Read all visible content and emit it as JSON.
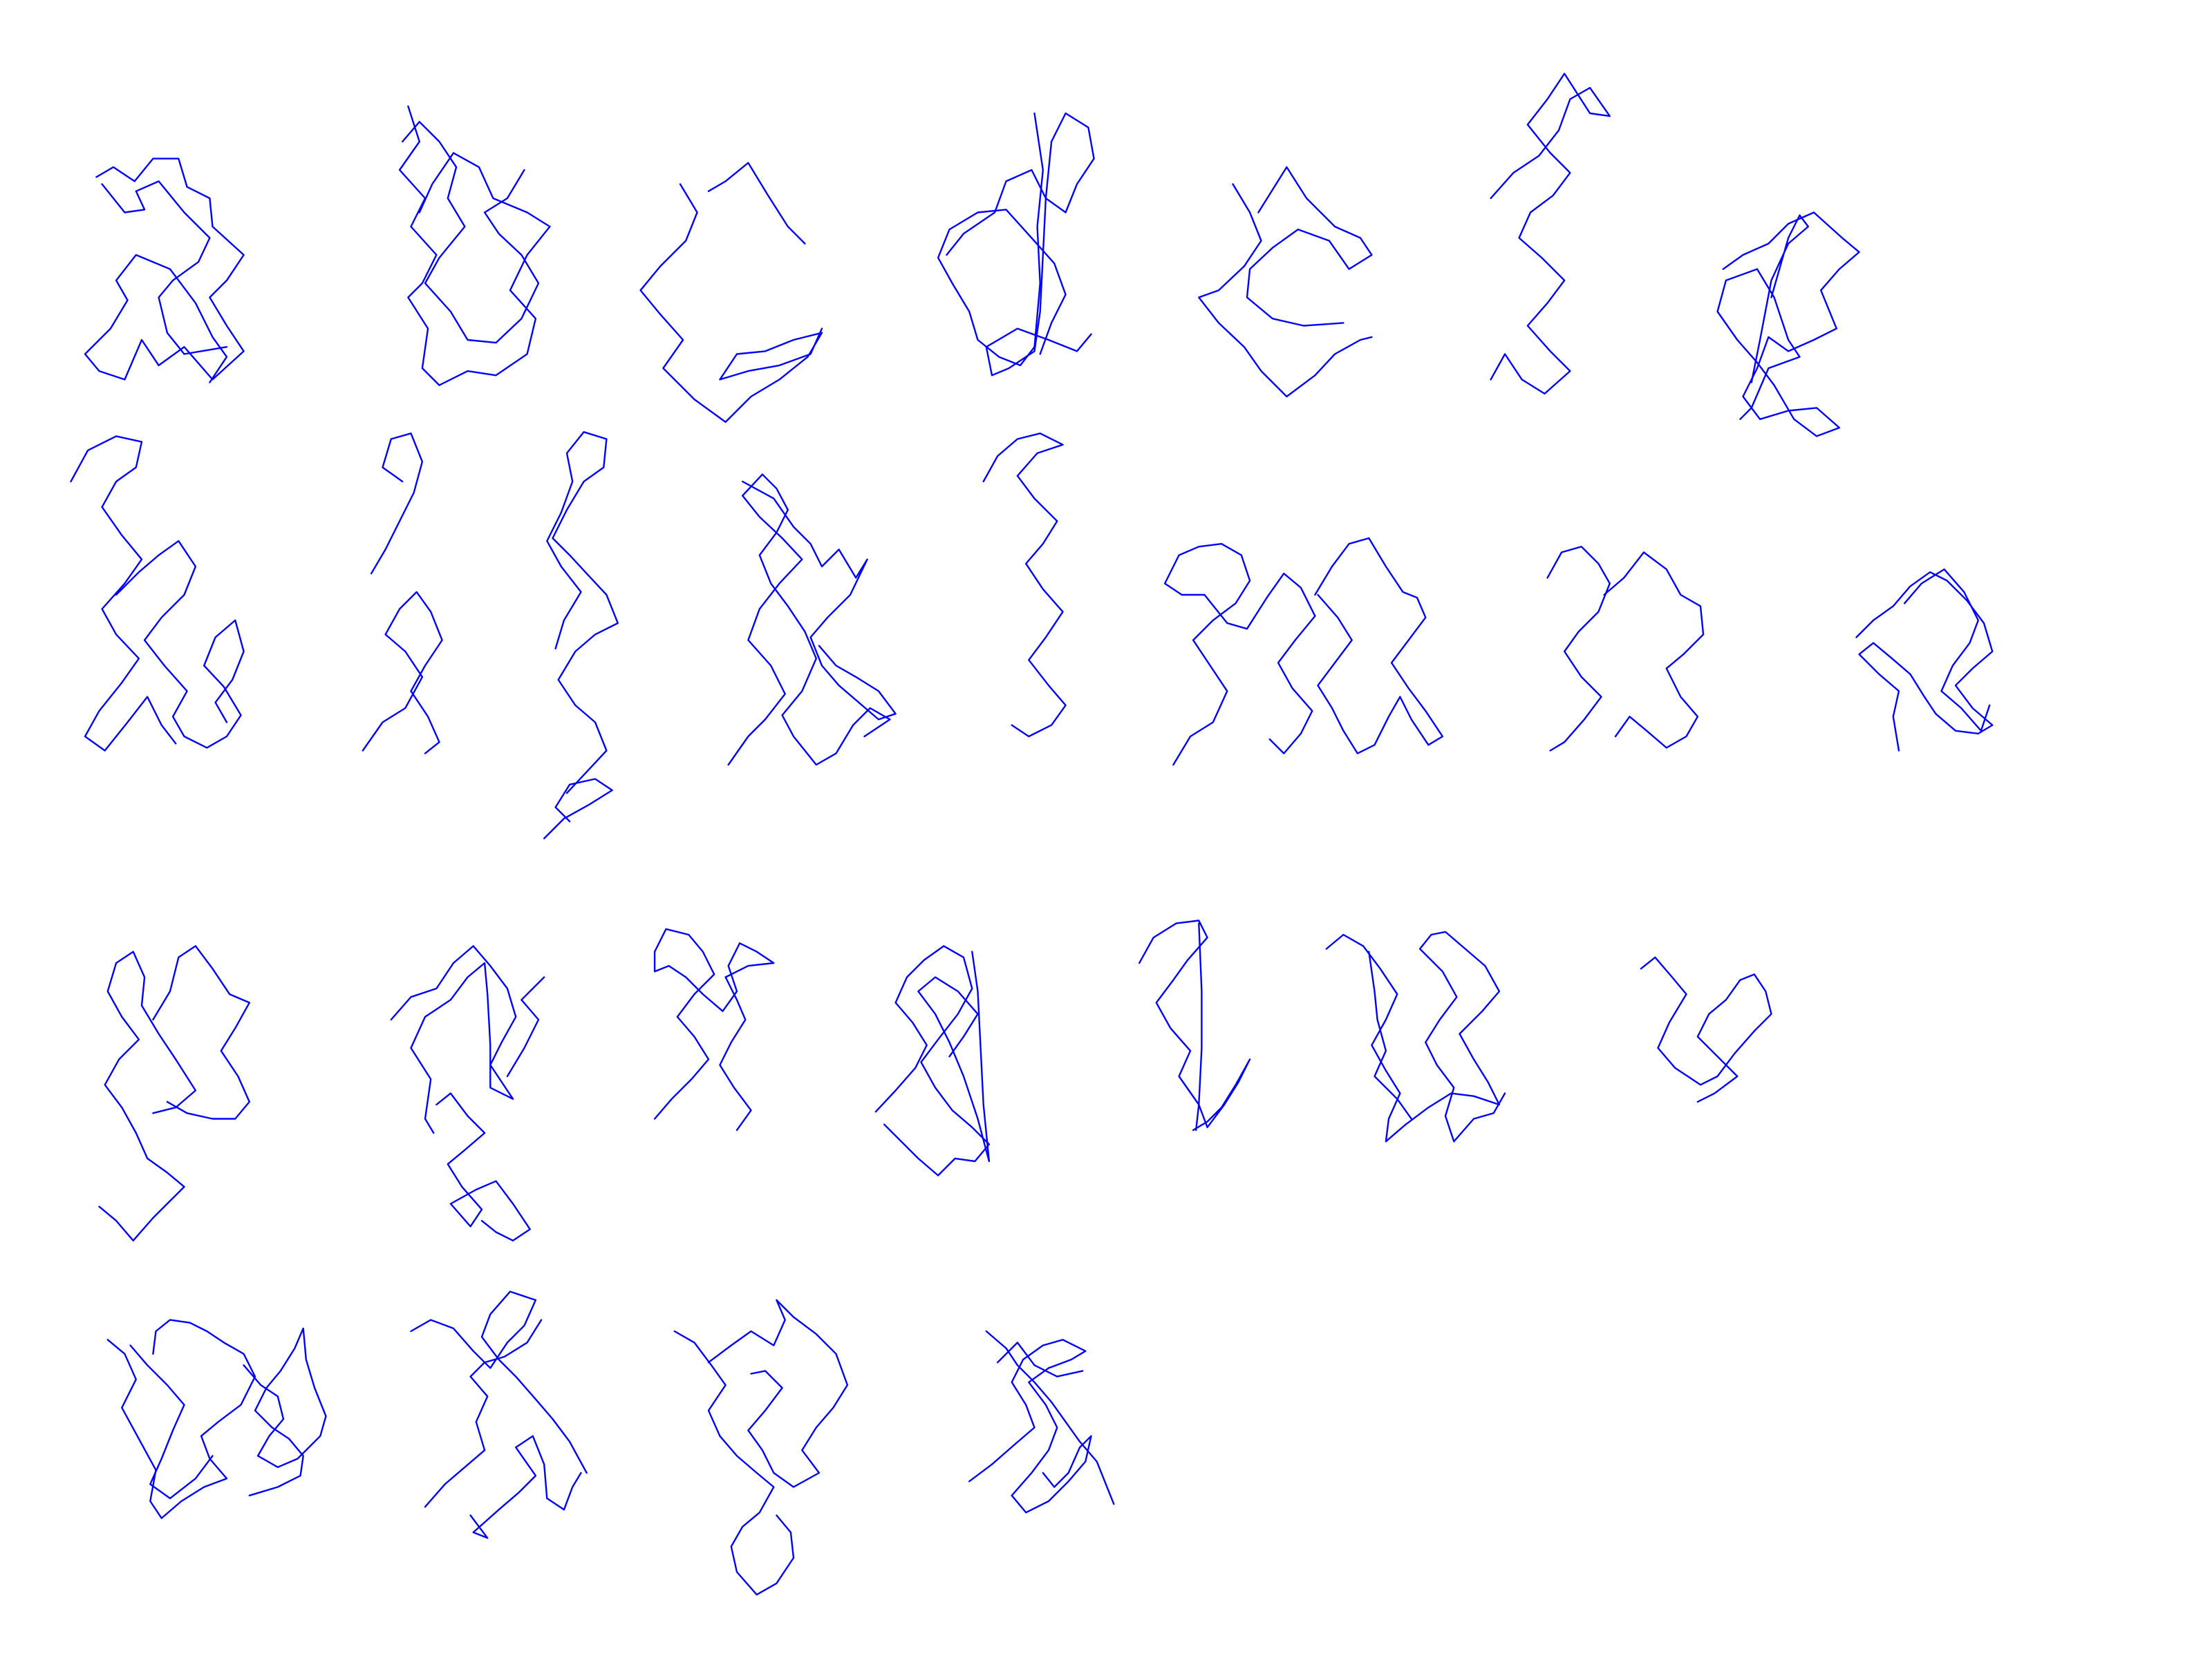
{
  "canvas": {
    "background": "#ffffff",
    "stroke_color": "#0000ff"
  },
  "rows": [
    {
      "row": 1,
      "glyph_count": 7
    },
    {
      "row": 2,
      "glyph_count": 9
    },
    {
      "row": 3,
      "glyph_count": 7
    },
    {
      "row": 4,
      "glyph_count": 4
    }
  ],
  "total_glyphs": 27
}
